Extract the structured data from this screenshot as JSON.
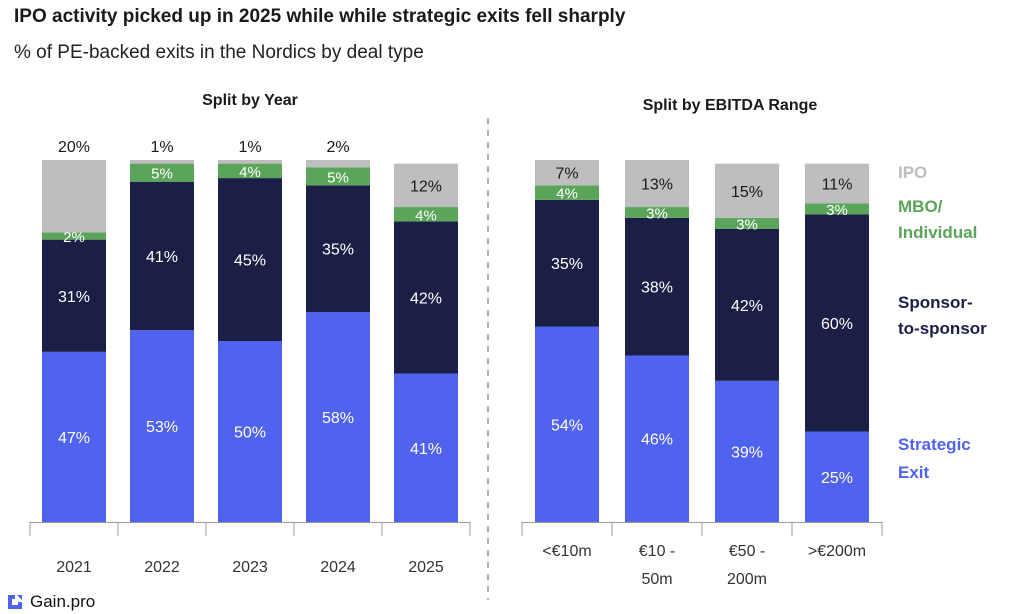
{
  "title": "IPO activity picked up in 2025 while while strategic exits fell sharply",
  "subtitle": "% of PE-backed exits in the Nordics by deal type",
  "brand": "Gain.pro",
  "colors": {
    "strategic": "#4f63ee",
    "sponsor": "#1c1f45",
    "mbo": "#5aa55a",
    "ipo": "#bebebe"
  },
  "legend": [
    {
      "key": "ipo",
      "lines": [
        "IPO"
      ]
    },
    {
      "key": "mbo",
      "lines": [
        "MBO/",
        "Individual"
      ]
    },
    {
      "key": "sponsor",
      "lines": [
        "Sponsor-",
        "to-sponsor"
      ]
    },
    {
      "key": "strategic",
      "lines": [
        "Strategic",
        "Exit"
      ]
    }
  ],
  "chart_data": [
    {
      "type": "bar",
      "stacked": true,
      "title": "Split by Year",
      "categories": [
        [
          "2021"
        ],
        [
          "2022"
        ],
        [
          "2023"
        ],
        [
          "2024"
        ],
        [
          "2025"
        ]
      ],
      "series": [
        {
          "key": "strategic",
          "values": [
            47,
            53,
            50,
            58,
            41
          ],
          "labels": [
            "47%",
            "53%",
            "50%",
            "58%",
            "41%"
          ]
        },
        {
          "key": "sponsor",
          "values": [
            31,
            41,
            45,
            35,
            42
          ],
          "labels": [
            "31%",
            "41%",
            "45%",
            "35%",
            "42%"
          ]
        },
        {
          "key": "mbo",
          "values": [
            2,
            5,
            4,
            5,
            4
          ],
          "labels": [
            "2%",
            "5%",
            "4%",
            "5%",
            "4%"
          ]
        },
        {
          "key": "ipo",
          "values": [
            20,
            1,
            1,
            2,
            12
          ],
          "labels": [
            "20%",
            "1%",
            "1%",
            "2%",
            "12%"
          ]
        }
      ],
      "ylim": [
        0,
        100
      ]
    },
    {
      "type": "bar",
      "stacked": true,
      "title": "Split by EBITDA Range",
      "categories": [
        [
          "<€10m"
        ],
        [
          "€10 -",
          "50m"
        ],
        [
          "€50 -",
          "200m"
        ],
        [
          ">€200m"
        ]
      ],
      "series": [
        {
          "key": "strategic",
          "values": [
            54,
            46,
            39,
            25
          ],
          "labels": [
            "54%",
            "46%",
            "39%",
            "25%"
          ]
        },
        {
          "key": "sponsor",
          "values": [
            35,
            38,
            42,
            60
          ],
          "labels": [
            "35%",
            "38%",
            "42%",
            "60%"
          ]
        },
        {
          "key": "mbo",
          "values": [
            4,
            3,
            3,
            3
          ],
          "labels": [
            "4%",
            "3%",
            "3%",
            "3%"
          ]
        },
        {
          "key": "ipo",
          "values": [
            7,
            13,
            15,
            11
          ],
          "labels": [
            "7%",
            "13%",
            "15%",
            "11%"
          ]
        }
      ],
      "ylim": [
        0,
        100
      ]
    }
  ]
}
